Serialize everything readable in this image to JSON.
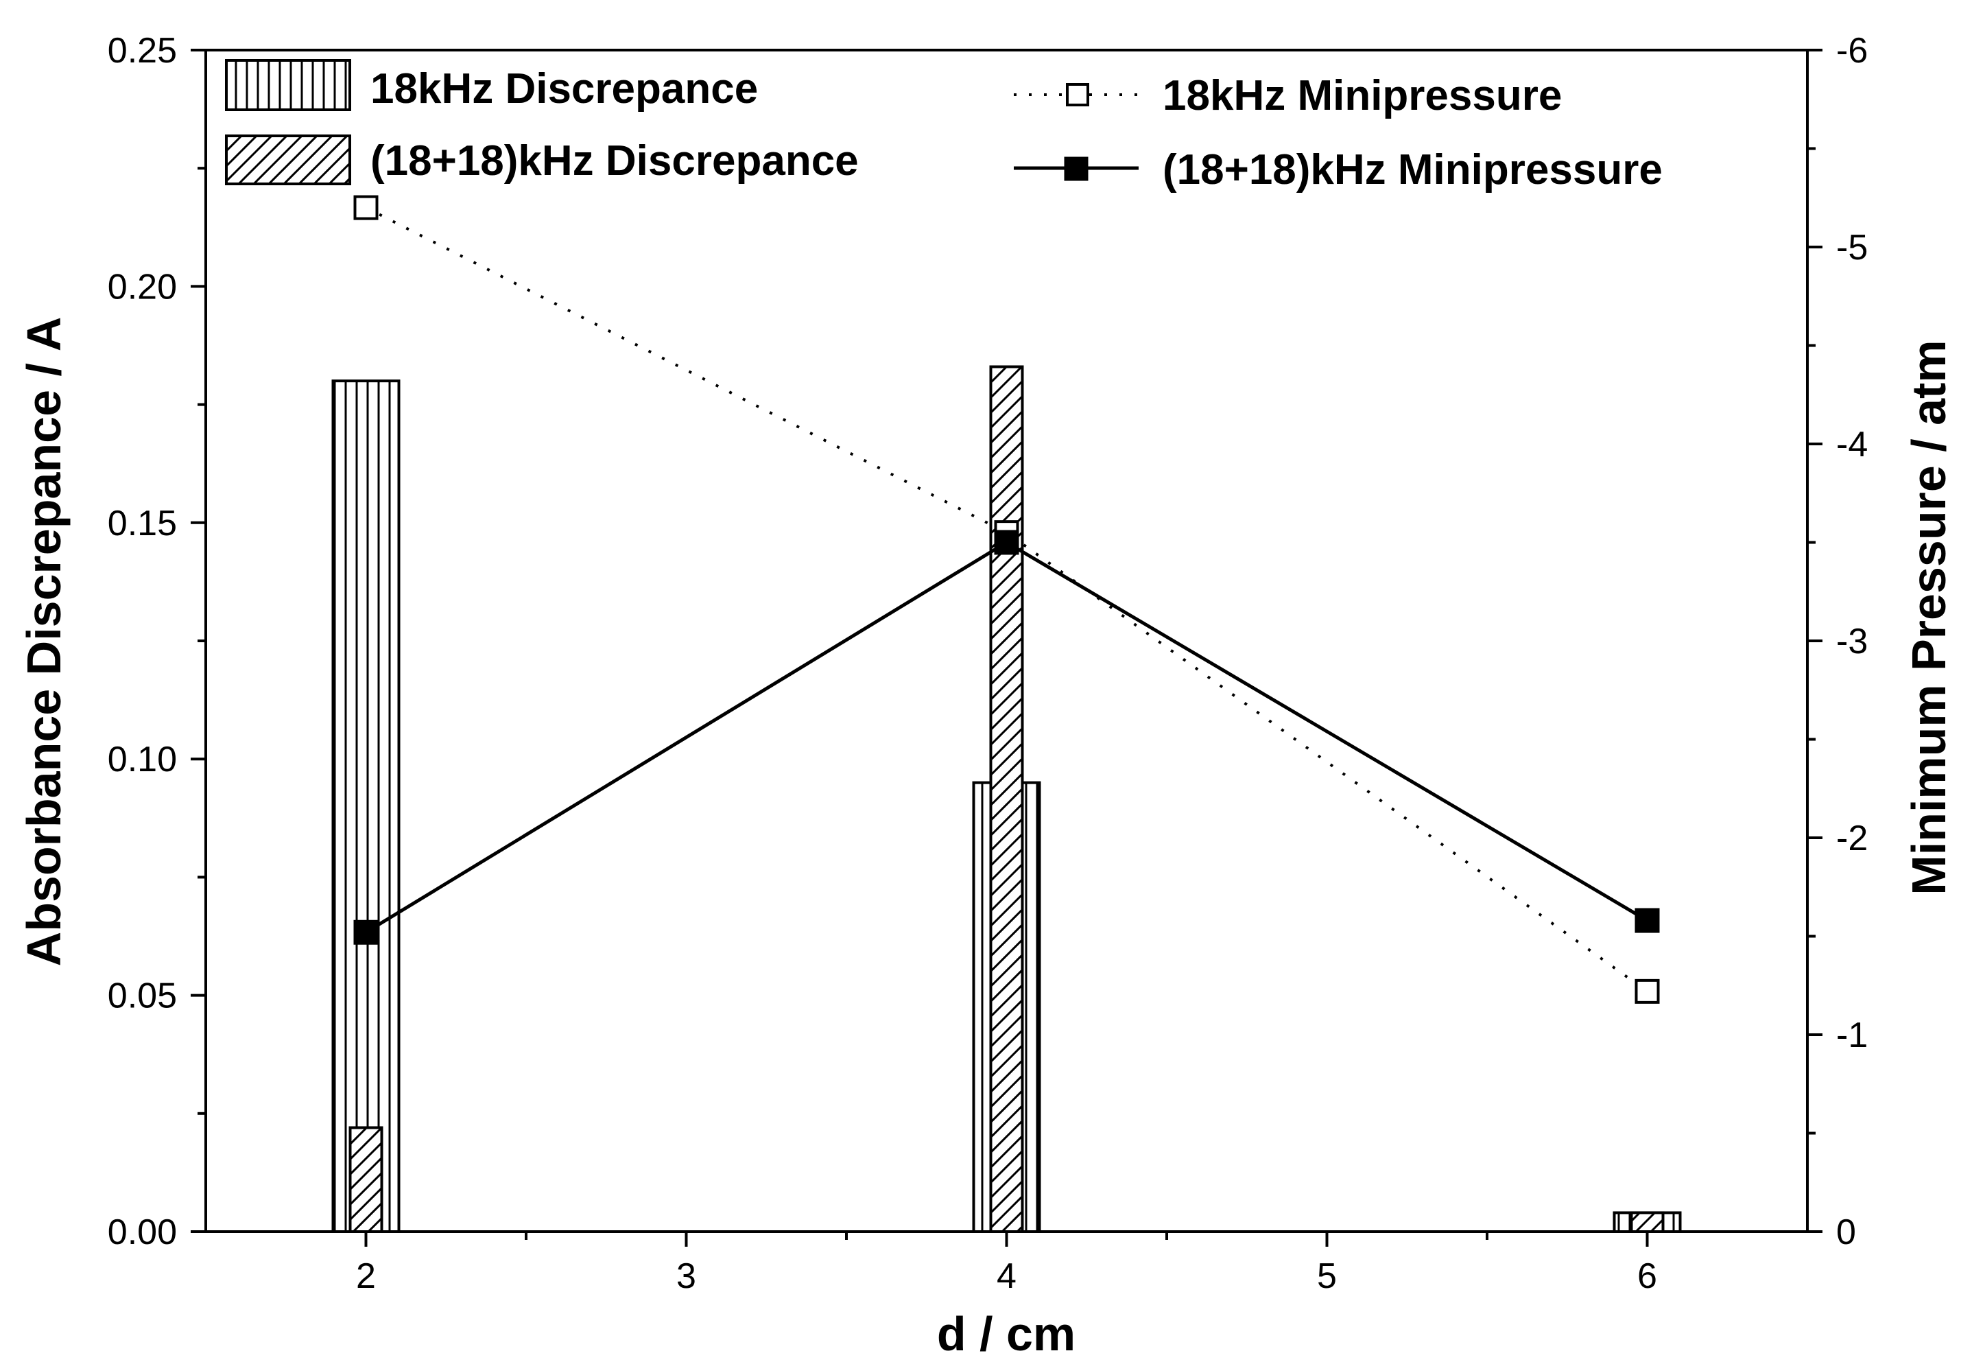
{
  "chart_data": {
    "type": "bar",
    "x": [
      2,
      4,
      6
    ],
    "xlabel": "d / cm",
    "ylabel": "Absorbance Discrepance / A",
    "y2label": "Minimum Pressure / atm",
    "xlim": [
      1.5,
      6.5
    ],
    "ylim": [
      0,
      0.25
    ],
    "y2lim": [
      0,
      -6
    ],
    "xticks": [
      "2",
      "3",
      "4",
      "5",
      "6"
    ],
    "yticks": [
      "0.00",
      "0.05",
      "0.10",
      "0.15",
      "0.20",
      "0.25"
    ],
    "y2ticks": [
      "0",
      "-1",
      "-2",
      "-3",
      "-4",
      "-5",
      "-6"
    ],
    "grid": false,
    "bars": [
      {
        "name": "18kHz Discrepance",
        "pattern": "vertical-lines",
        "values": [
          0.18,
          0.095,
          0.004
        ]
      },
      {
        "name": "(18+18)kHz Discrepance",
        "pattern": "diagonal-hatch",
        "values": [
          0.022,
          0.183,
          0.004
        ]
      }
    ],
    "lines": [
      {
        "name": "18kHz Minipressure",
        "style": "dotted",
        "marker": "open-square",
        "axis": "right",
        "values": [
          -5.2,
          -3.55,
          -1.22
        ]
      },
      {
        "name": "(18+18)kHz Minipressure",
        "style": "solid",
        "marker": "filled-square",
        "axis": "right",
        "values": [
          -1.52,
          -3.5,
          -1.58
        ]
      }
    ]
  }
}
